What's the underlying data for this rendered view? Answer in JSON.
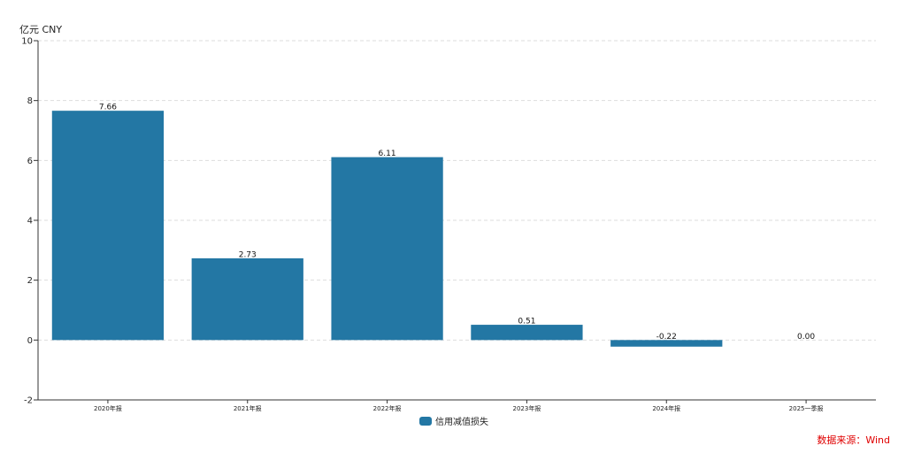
{
  "chart_data": {
    "type": "bar",
    "unit_label": "亿元 CNY",
    "categories": [
      "2020年报",
      "2021年报",
      "2022年报",
      "2023年报",
      "2024年报",
      "2025一季报"
    ],
    "series": [
      {
        "name": "信用减值损失",
        "values": [
          7.66,
          2.73,
          6.11,
          0.51,
          -0.22,
          0.0
        ],
        "labels": [
          "7.66",
          "2.73",
          "6.11",
          "0.51",
          "-0.22",
          "0.00"
        ]
      }
    ],
    "ylim": [
      -2,
      10
    ],
    "yticks": [
      -2,
      0,
      2,
      4,
      6,
      8,
      10
    ],
    "grid": true,
    "legend_position": "bottom-center"
  },
  "colors": {
    "bar": "#2377a4"
  },
  "source": "数据来源：Wind"
}
